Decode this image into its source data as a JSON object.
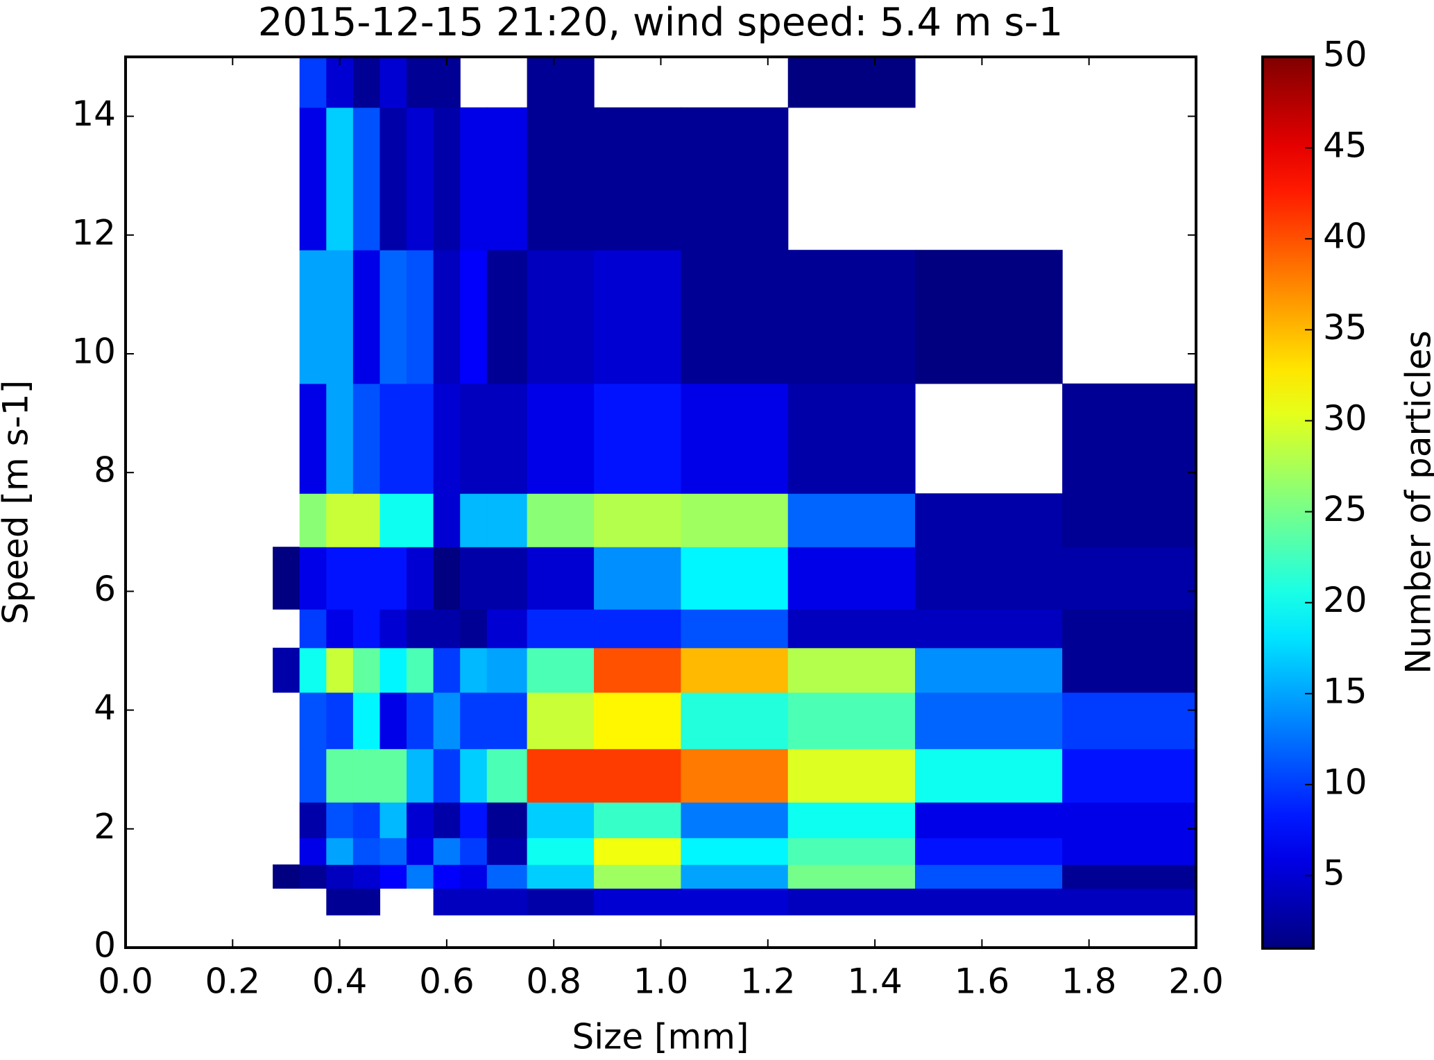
{
  "chart_data": {
    "type": "heatmap",
    "title": "2015-12-15 21:20, wind speed: 5.4 m s-1",
    "xlabel": "Size [mm]",
    "ylabel": "Speed [m s-1]",
    "colorbar_label": "Number of particles",
    "colormap": "jet",
    "x_edges": [
      0.275,
      0.325,
      0.375,
      0.425,
      0.475,
      0.525,
      0.575,
      0.625,
      0.675,
      0.75,
      0.875,
      1.0375,
      1.2375,
      1.475,
      1.75,
      2.0
    ],
    "y_edges": [
      0.55,
      1.0,
      1.4,
      1.85,
      2.45,
      3.35,
      4.3,
      5.05,
      5.7,
      6.75,
      7.65,
      9.5,
      11.75,
      14.15,
      15.5
    ],
    "values": [
      [
        null,
        null,
        2,
        2,
        null,
        null,
        4,
        4,
        4,
        3,
        5,
        5,
        4,
        4,
        4
      ],
      [
        1,
        2,
        4,
        5,
        7,
        13,
        7,
        6,
        12,
        17,
        27,
        15,
        25,
        11,
        2
      ],
      [
        null,
        6,
        15,
        11,
        12,
        6,
        13,
        10,
        3,
        20,
        31,
        19,
        23,
        8,
        6
      ],
      [
        null,
        3,
        11,
        10,
        16,
        5,
        3,
        8,
        2,
        17,
        22,
        13,
        20,
        6,
        6
      ],
      [
        null,
        11,
        24,
        24,
        24,
        16,
        10,
        17,
        23,
        41,
        41,
        38,
        30,
        20,
        8
      ],
      [
        null,
        11,
        10,
        19,
        6,
        10,
        14,
        10,
        10,
        29,
        32,
        21,
        23,
        12,
        10
      ],
      [
        3,
        20,
        29,
        24,
        19,
        23,
        10,
        16,
        15,
        23,
        40,
        35,
        28,
        14,
        2
      ],
      [
        null,
        10,
        6,
        8,
        5,
        3,
        3,
        2,
        5,
        9,
        9,
        11,
        4,
        4,
        2
      ],
      [
        1,
        6,
        8,
        8,
        8,
        5,
        1,
        3,
        3,
        5,
        14,
        19,
        6,
        3,
        3
      ],
      [
        null,
        26,
        29,
        29,
        20,
        20,
        5,
        16,
        16,
        26,
        28,
        27,
        12,
        3,
        2
      ],
      [
        null,
        6,
        15,
        11,
        9,
        9,
        5,
        4,
        4,
        6,
        8,
        6,
        3,
        null,
        2
      ],
      [
        null,
        15,
        15,
        6,
        12,
        11,
        4,
        7,
        2,
        4,
        5,
        2,
        2,
        1,
        null
      ],
      [
        null,
        6,
        17,
        11,
        3,
        5,
        3,
        6,
        6,
        2,
        2,
        2,
        null,
        null,
        null
      ],
      [
        null,
        10,
        5,
        2,
        5,
        2,
        2,
        null,
        null,
        2,
        null,
        null,
        1,
        null,
        null
      ]
    ],
    "xlim": [
      0,
      2
    ],
    "xticks": [
      {
        "value": 0,
        "label": "0.0"
      },
      {
        "value": 0.2,
        "label": "0.2"
      },
      {
        "value": 0.4,
        "label": "0.4"
      },
      {
        "value": 0.6,
        "label": "0.6"
      },
      {
        "value": 0.8,
        "label": "0.8"
      },
      {
        "value": 1,
        "label": "1.0"
      },
      {
        "value": 1.2,
        "label": "1.2"
      },
      {
        "value": 1.4,
        "label": "1.4"
      },
      {
        "value": 1.6,
        "label": "1.6"
      },
      {
        "value": 1.8,
        "label": "1.8"
      },
      {
        "value": 2,
        "label": "2.0"
      }
    ],
    "ylim": [
      0,
      15
    ],
    "yticks": [
      0,
      2,
      4,
      6,
      8,
      10,
      12,
      14
    ],
    "clim": [
      1,
      50
    ],
    "cticks": [
      5,
      10,
      15,
      20,
      25,
      30,
      35,
      40,
      45,
      50
    ]
  }
}
